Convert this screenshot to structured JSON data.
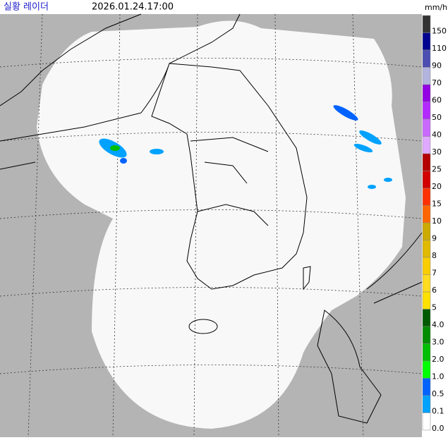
{
  "header": {
    "title": "실황 레이더",
    "timestamp": "2026.01.24.17:00",
    "unit": "mm/h"
  },
  "legend": {
    "items": [
      {
        "label": "150",
        "color": "#333333"
      },
      {
        "label": "110",
        "color": "#000390"
      },
      {
        "label": "90",
        "color": "#4c4eb1"
      },
      {
        "label": "70",
        "color": "#b3b4de"
      },
      {
        "label": "60",
        "color": "#9300e4"
      },
      {
        "label": "50",
        "color": "#b329ff"
      },
      {
        "label": "40",
        "color": "#c969ff"
      },
      {
        "label": "30",
        "color": "#e0a9ff"
      },
      {
        "label": "25",
        "color": "#b40000"
      },
      {
        "label": "20",
        "color": "#d20000"
      },
      {
        "label": "15",
        "color": "#ff3200"
      },
      {
        "label": "10",
        "color": "#ff6600"
      },
      {
        "label": "9",
        "color": "#ccaa00"
      },
      {
        "label": "8",
        "color": "#e0b900"
      },
      {
        "label": "7",
        "color": "#f9cd00"
      },
      {
        "label": "6",
        "color": "#ffdc1f"
      },
      {
        "label": "5",
        "color": "#ffe100"
      },
      {
        "label": "4.0",
        "color": "#005a00"
      },
      {
        "label": "3.0",
        "color": "#008c00"
      },
      {
        "label": "2.0",
        "color": "#00be00"
      },
      {
        "label": "1.0",
        "color": "#00ff00"
      },
      {
        "label": "0.5",
        "color": "#0063ff"
      },
      {
        "label": "0.1",
        "color": "#00a2ff"
      },
      {
        "label": "0.0",
        "color": "#ffffff"
      }
    ]
  }
}
